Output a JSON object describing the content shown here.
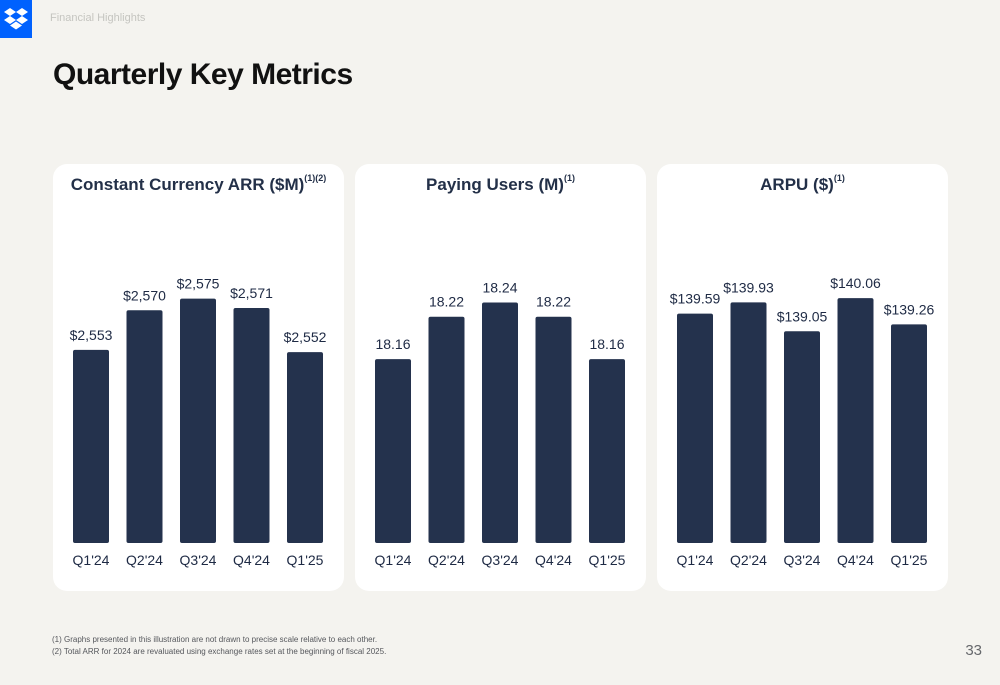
{
  "header": {
    "section_label": "Financial Highlights",
    "title": "Quarterly Key Metrics",
    "logo_icon": "dropbox-icon",
    "brand_color": "#0061fe"
  },
  "footnotes": [
    "(1) Graphs presented in this illustration are not drawn to precise scale relative to each other.",
    "(2) Total ARR for 2024 are revaluated using exchange rates set at the beginning of fiscal 2025."
  ],
  "page_number": "33",
  "bar_color": "#24324d",
  "chart_data": [
    {
      "type": "bar",
      "title": "Constant Currency ARR ($M)",
      "title_superscript": "(1)(2)",
      "categories": [
        "Q1'24",
        "Q2'24",
        "Q3'24",
        "Q4'24",
        "Q1'25"
      ],
      "values": [
        2553,
        2570,
        2575,
        2571,
        2552
      ],
      "labels": [
        "$2,553",
        "$2,570",
        "$2,575",
        "$2,571",
        "$2,552"
      ],
      "ylim": [
        2470,
        2580
      ]
    },
    {
      "type": "bar",
      "title": "Paying Users (M)",
      "title_superscript": "(1)",
      "categories": [
        "Q1'24",
        "Q2'24",
        "Q3'24",
        "Q4'24",
        "Q1'25"
      ],
      "values": [
        18.16,
        18.22,
        18.24,
        18.22,
        18.16
      ],
      "labels": [
        "18.16",
        "18.22",
        "18.24",
        "18.22",
        "18.16"
      ],
      "ylim": [
        17.9,
        18.262
      ]
    },
    {
      "type": "bar",
      "title": "ARPU ($)",
      "title_superscript": "(1)",
      "categories": [
        "Q1'24",
        "Q2'24",
        "Q3'24",
        "Q4'24",
        "Q1'25"
      ],
      "values": [
        139.59,
        139.93,
        139.05,
        140.06,
        139.26
      ],
      "labels": [
        "$139.59",
        "$139.93",
        "$139.05",
        "$140.06",
        "$139.26"
      ],
      "ylim": [
        132.6,
        140.4
      ]
    }
  ]
}
